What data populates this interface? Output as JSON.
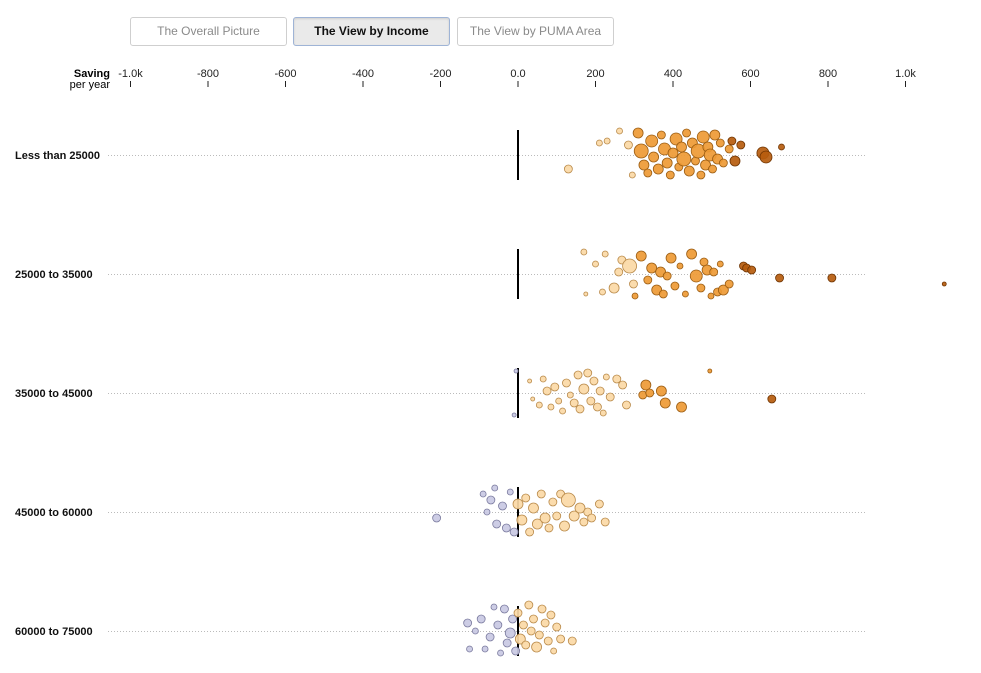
{
  "tabs": [
    {
      "label": "The Overall Picture",
      "active": false
    },
    {
      "label": "The View by Income",
      "active": true
    },
    {
      "label": "The View by PUMA Area",
      "active": false
    }
  ],
  "chart_data": {
    "type": "scatter",
    "title": "",
    "xlabel": "Saving",
    "xlabel_sub": "per year",
    "xlim": [
      -1000,
      900
    ],
    "x_ticks": [
      {
        "value": -1000,
        "label": "-1.0k"
      },
      {
        "value": -800,
        "label": "-800"
      },
      {
        "value": -600,
        "label": "-600"
      },
      {
        "value": -400,
        "label": "-400"
      },
      {
        "value": -200,
        "label": "-200"
      },
      {
        "value": 0,
        "label": "0.0"
      },
      {
        "value": 200,
        "label": "200"
      },
      {
        "value": 400,
        "label": "400"
      },
      {
        "value": 600,
        "label": "600"
      },
      {
        "value": 800,
        "label": "800"
      },
      {
        "value": 1000,
        "label": "1.0k"
      }
    ],
    "grid": true,
    "legend": "none",
    "colors": {
      "negative": "#c9c9e3",
      "low": "#fbd9a6",
      "mid": "#ee9a35",
      "high": "#b65c0e",
      "zero_line": "#000000",
      "gridline": "#bbbbbb"
    },
    "groups": [
      {
        "label": "Less than 25000",
        "points": [
          {
            "x": 130,
            "o": 14,
            "s": 4
          },
          {
            "x": 210,
            "o": -12,
            "s": 3
          },
          {
            "x": 230,
            "o": -14,
            "s": 3
          },
          {
            "x": 262,
            "o": -24,
            "s": 3
          },
          {
            "x": 285,
            "o": -10,
            "s": 4
          },
          {
            "x": 295,
            "o": 20,
            "s": 3
          },
          {
            "x": 310,
            "o": -22,
            "s": 5
          },
          {
            "x": 318,
            "o": -4,
            "s": 7
          },
          {
            "x": 325,
            "o": 10,
            "s": 5
          },
          {
            "x": 335,
            "o": 18,
            "s": 4
          },
          {
            "x": 345,
            "o": -14,
            "s": 6
          },
          {
            "x": 350,
            "o": 2,
            "s": 5
          },
          {
            "x": 362,
            "o": 14,
            "s": 5
          },
          {
            "x": 370,
            "o": -20,
            "s": 4
          },
          {
            "x": 378,
            "o": -6,
            "s": 6
          },
          {
            "x": 385,
            "o": 8,
            "s": 5
          },
          {
            "x": 393,
            "o": 20,
            "s": 4
          },
          {
            "x": 400,
            "o": -2,
            "s": 5
          },
          {
            "x": 408,
            "o": -16,
            "s": 6
          },
          {
            "x": 415,
            "o": 12,
            "s": 4
          },
          {
            "x": 422,
            "o": -8,
            "s": 5
          },
          {
            "x": 428,
            "o": 4,
            "s": 7
          },
          {
            "x": 435,
            "o": -22,
            "s": 4
          },
          {
            "x": 442,
            "o": 16,
            "s": 5
          },
          {
            "x": 450,
            "o": -12,
            "s": 5
          },
          {
            "x": 458,
            "o": 6,
            "s": 4
          },
          {
            "x": 465,
            "o": -4,
            "s": 7
          },
          {
            "x": 472,
            "o": 20,
            "s": 4
          },
          {
            "x": 478,
            "o": -18,
            "s": 6
          },
          {
            "x": 484,
            "o": 10,
            "s": 5
          },
          {
            "x": 490,
            "o": -8,
            "s": 5
          },
          {
            "x": 496,
            "o": 0,
            "s": 6
          },
          {
            "x": 502,
            "o": 14,
            "s": 4
          },
          {
            "x": 508,
            "o": -20,
            "s": 5
          },
          {
            "x": 515,
            "o": 4,
            "s": 5
          },
          {
            "x": 522,
            "o": -12,
            "s": 4
          },
          {
            "x": 530,
            "o": 8,
            "s": 4
          },
          {
            "x": 545,
            "o": -6,
            "s": 4
          },
          {
            "x": 552,
            "o": -14,
            "s": 4
          },
          {
            "x": 560,
            "o": 6,
            "s": 5
          },
          {
            "x": 575,
            "o": -10,
            "s": 4
          },
          {
            "x": 632,
            "o": -2,
            "s": 6
          },
          {
            "x": 640,
            "o": 2,
            "s": 6
          },
          {
            "x": 680,
            "o": -8,
            "s": 3
          }
        ]
      },
      {
        "label": "25000 to 35000",
        "points": [
          {
            "x": 170,
            "o": -22,
            "s": 3
          },
          {
            "x": 175,
            "o": 20,
            "s": 2
          },
          {
            "x": 200,
            "o": -10,
            "s": 3
          },
          {
            "x": 218,
            "o": 18,
            "s": 3
          },
          {
            "x": 225,
            "o": -20,
            "s": 3
          },
          {
            "x": 248,
            "o": 14,
            "s": 5
          },
          {
            "x": 260,
            "o": -2,
            "s": 4
          },
          {
            "x": 268,
            "o": -14,
            "s": 4
          },
          {
            "x": 288,
            "o": -8,
            "s": 7
          },
          {
            "x": 298,
            "o": 10,
            "s": 4
          },
          {
            "x": 302,
            "o": 22,
            "s": 3
          },
          {
            "x": 318,
            "o": -18,
            "s": 5
          },
          {
            "x": 335,
            "o": 6,
            "s": 4
          },
          {
            "x": 345,
            "o": -6,
            "s": 5
          },
          {
            "x": 358,
            "o": 16,
            "s": 5
          },
          {
            "x": 368,
            "o": -2,
            "s": 5
          },
          {
            "x": 375,
            "o": 20,
            "s": 4
          },
          {
            "x": 385,
            "o": 2,
            "s": 4
          },
          {
            "x": 395,
            "o": -16,
            "s": 5
          },
          {
            "x": 405,
            "o": 12,
            "s": 4
          },
          {
            "x": 418,
            "o": -8,
            "s": 3
          },
          {
            "x": 432,
            "o": 20,
            "s": 3
          },
          {
            "x": 448,
            "o": -20,
            "s": 5
          },
          {
            "x": 460,
            "o": 2,
            "s": 6
          },
          {
            "x": 472,
            "o": 14,
            "s": 4
          },
          {
            "x": 480,
            "o": -12,
            "s": 4
          },
          {
            "x": 488,
            "o": -4,
            "s": 5
          },
          {
            "x": 498,
            "o": 22,
            "s": 3
          },
          {
            "x": 505,
            "o": -2,
            "s": 4
          },
          {
            "x": 515,
            "o": 18,
            "s": 4
          },
          {
            "x": 522,
            "o": -10,
            "s": 3
          },
          {
            "x": 530,
            "o": 16,
            "s": 5
          },
          {
            "x": 545,
            "o": 10,
            "s": 4
          },
          {
            "x": 582,
            "o": -8,
            "s": 4
          },
          {
            "x": 590,
            "o": -6,
            "s": 4
          },
          {
            "x": 603,
            "o": -4,
            "s": 4
          },
          {
            "x": 675,
            "o": 4,
            "s": 4
          },
          {
            "x": 810,
            "o": 4,
            "s": 4
          },
          {
            "x": 1100,
            "o": 10,
            "s": 2
          }
        ]
      },
      {
        "label": "35000 to 45000",
        "points": [
          {
            "x": -10,
            "o": 22,
            "s": 2
          },
          {
            "x": -5,
            "o": -22,
            "s": 2
          },
          {
            "x": 30,
            "o": -12,
            "s": 2
          },
          {
            "x": 38,
            "o": 6,
            "s": 2
          },
          {
            "x": 55,
            "o": 12,
            "s": 3
          },
          {
            "x": 65,
            "o": -14,
            "s": 3
          },
          {
            "x": 75,
            "o": -2,
            "s": 4
          },
          {
            "x": 85,
            "o": 14,
            "s": 3
          },
          {
            "x": 95,
            "o": -6,
            "s": 4
          },
          {
            "x": 105,
            "o": 8,
            "s": 3
          },
          {
            "x": 115,
            "o": 18,
            "s": 3
          },
          {
            "x": 125,
            "o": -10,
            "s": 4
          },
          {
            "x": 135,
            "o": 2,
            "s": 3
          },
          {
            "x": 145,
            "o": 10,
            "s": 4
          },
          {
            "x": 155,
            "o": -18,
            "s": 4
          },
          {
            "x": 160,
            "o": 16,
            "s": 4
          },
          {
            "x": 170,
            "o": -4,
            "s": 5
          },
          {
            "x": 180,
            "o": -20,
            "s": 4
          },
          {
            "x": 188,
            "o": 8,
            "s": 4
          },
          {
            "x": 196,
            "o": -12,
            "s": 4
          },
          {
            "x": 205,
            "o": 14,
            "s": 4
          },
          {
            "x": 212,
            "o": -2,
            "s": 4
          },
          {
            "x": 220,
            "o": 20,
            "s": 3
          },
          {
            "x": 228,
            "o": -16,
            "s": 3
          },
          {
            "x": 238,
            "o": 4,
            "s": 4
          },
          {
            "x": 255,
            "o": -14,
            "s": 4
          },
          {
            "x": 270,
            "o": -8,
            "s": 4
          },
          {
            "x": 280,
            "o": 12,
            "s": 4
          },
          {
            "x": 322,
            "o": 2,
            "s": 4
          },
          {
            "x": 330,
            "o": -8,
            "s": 5
          },
          {
            "x": 340,
            "o": 0,
            "s": 4
          },
          {
            "x": 370,
            "o": -2,
            "s": 5
          },
          {
            "x": 380,
            "o": 10,
            "s": 5
          },
          {
            "x": 422,
            "o": 14,
            "s": 5
          },
          {
            "x": 495,
            "o": -22,
            "s": 2
          },
          {
            "x": 655,
            "o": 6,
            "s": 4
          }
        ]
      },
      {
        "label": "45000 to 60000",
        "points": [
          {
            "x": -210,
            "o": 6,
            "s": 4
          },
          {
            "x": -90,
            "o": -18,
            "s": 3
          },
          {
            "x": -80,
            "o": 0,
            "s": 3
          },
          {
            "x": -70,
            "o": -12,
            "s": 4
          },
          {
            "x": -60,
            "o": -24,
            "s": 3
          },
          {
            "x": -55,
            "o": 12,
            "s": 4
          },
          {
            "x": -40,
            "o": -6,
            "s": 4
          },
          {
            "x": -30,
            "o": 16,
            "s": 4
          },
          {
            "x": -20,
            "o": -20,
            "s": 3
          },
          {
            "x": -10,
            "o": 20,
            "s": 4
          },
          {
            "x": 0,
            "o": -8,
            "s": 5
          },
          {
            "x": 10,
            "o": 8,
            "s": 5
          },
          {
            "x": 20,
            "o": -14,
            "s": 4
          },
          {
            "x": 30,
            "o": 20,
            "s": 4
          },
          {
            "x": 40,
            "o": -4,
            "s": 5
          },
          {
            "x": 50,
            "o": 12,
            "s": 5
          },
          {
            "x": 60,
            "o": -18,
            "s": 4
          },
          {
            "x": 70,
            "o": 6,
            "s": 5
          },
          {
            "x": 80,
            "o": 16,
            "s": 4
          },
          {
            "x": 90,
            "o": -10,
            "s": 4
          },
          {
            "x": 100,
            "o": 4,
            "s": 4
          },
          {
            "x": 110,
            "o": -18,
            "s": 4
          },
          {
            "x": 120,
            "o": 14,
            "s": 5
          },
          {
            "x": 130,
            "o": -12,
            "s": 7
          },
          {
            "x": 145,
            "o": 4,
            "s": 5
          },
          {
            "x": 160,
            "o": -4,
            "s": 5
          },
          {
            "x": 170,
            "o": 10,
            "s": 4
          },
          {
            "x": 180,
            "o": 0,
            "s": 4
          },
          {
            "x": 190,
            "o": 6,
            "s": 4
          },
          {
            "x": 210,
            "o": -8,
            "s": 4
          },
          {
            "x": 225,
            "o": 10,
            "s": 4
          }
        ]
      },
      {
        "label": "60000 to 75000",
        "points": [
          {
            "x": -130,
            "o": -8,
            "s": 4
          },
          {
            "x": -125,
            "o": 18,
            "s": 3
          },
          {
            "x": -110,
            "o": 0,
            "s": 3
          },
          {
            "x": -95,
            "o": -12,
            "s": 4
          },
          {
            "x": -85,
            "o": 18,
            "s": 3
          },
          {
            "x": -72,
            "o": 6,
            "s": 4
          },
          {
            "x": -62,
            "o": -24,
            "s": 3
          },
          {
            "x": -52,
            "o": -6,
            "s": 4
          },
          {
            "x": -45,
            "o": 22,
            "s": 3
          },
          {
            "x": -35,
            "o": -22,
            "s": 4
          },
          {
            "x": -28,
            "o": 12,
            "s": 4
          },
          {
            "x": -20,
            "o": 2,
            "s": 5
          },
          {
            "x": -14,
            "o": -12,
            "s": 4
          },
          {
            "x": -6,
            "o": 20,
            "s": 4
          },
          {
            "x": 0,
            "o": -18,
            "s": 4
          },
          {
            "x": 6,
            "o": 8,
            "s": 5
          },
          {
            "x": 14,
            "o": -6,
            "s": 4
          },
          {
            "x": 20,
            "o": 14,
            "s": 4
          },
          {
            "x": 28,
            "o": -26,
            "s": 4
          },
          {
            "x": 34,
            "o": 0,
            "s": 4
          },
          {
            "x": 40,
            "o": -12,
            "s": 4
          },
          {
            "x": 48,
            "o": 16,
            "s": 5
          },
          {
            "x": 55,
            "o": 4,
            "s": 4
          },
          {
            "x": 62,
            "o": -22,
            "s": 4
          },
          {
            "x": 70,
            "o": -8,
            "s": 4
          },
          {
            "x": 78,
            "o": 10,
            "s": 4
          },
          {
            "x": 85,
            "o": -16,
            "s": 4
          },
          {
            "x": 92,
            "o": 20,
            "s": 3
          },
          {
            "x": 100,
            "o": -4,
            "s": 4
          },
          {
            "x": 110,
            "o": 8,
            "s": 4
          },
          {
            "x": 140,
            "o": 10,
            "s": 4
          }
        ]
      }
    ]
  }
}
